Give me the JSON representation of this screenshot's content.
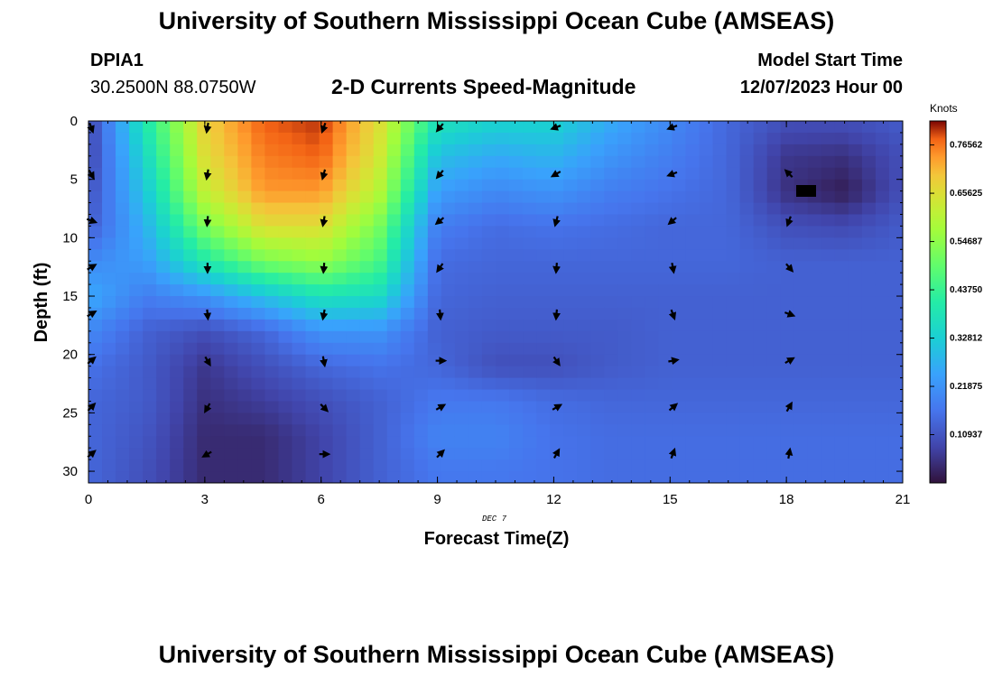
{
  "header": {
    "title": "University of Southern Mississippi Ocean Cube (AMSEAS)",
    "station": "DPIA1",
    "latlon": "30.2500N  88.0750W",
    "chart_title": "2-D Currents Speed-Magnitude",
    "model_start_label": "Model Start Time",
    "model_start_value": "12/07/2023 Hour 00"
  },
  "footer": {
    "title": "University of Southern Mississippi Ocean Cube (AMSEAS)"
  },
  "chart_data": {
    "type": "heatmap",
    "title": "2-D Currents Speed-Magnitude",
    "xlabel": "Forecast Time(Z)",
    "ylabel": "Depth (ft)",
    "date_label": "DEC 7",
    "xlim": [
      0,
      21
    ],
    "ylim": [
      0,
      31
    ],
    "x_ticks": [
      0,
      3,
      6,
      9,
      12,
      15,
      18,
      21
    ],
    "y_ticks": [
      0,
      5,
      10,
      15,
      20,
      25,
      30
    ],
    "colorbar": {
      "label": "Knots",
      "min": 0.0,
      "max": 0.82,
      "ticks": [
        "0.76562",
        "0.65625",
        "0.54687",
        "0.43750",
        "0.32812",
        "0.21875",
        "0.10937"
      ],
      "tick_values": [
        0.76562,
        0.65625,
        0.54687,
        0.4375,
        0.32812,
        0.21875,
        0.10937
      ]
    },
    "speed_grid": {
      "times": [
        0,
        1.5,
        3,
        4.5,
        6,
        7.5,
        9,
        10.5,
        12,
        13.5,
        15,
        16.5,
        18,
        19.5,
        21
      ],
      "depths": [
        0,
        3,
        6,
        9,
        12,
        15,
        18,
        21,
        24,
        27,
        30
      ],
      "values": [
        [
          0.08,
          0.4,
          0.68,
          0.78,
          0.8,
          0.66,
          0.38,
          0.34,
          0.34,
          0.26,
          0.2,
          0.14,
          0.1,
          0.1,
          0.12
        ],
        [
          0.08,
          0.36,
          0.66,
          0.76,
          0.78,
          0.64,
          0.3,
          0.26,
          0.28,
          0.22,
          0.18,
          0.14,
          0.06,
          0.05,
          0.1
        ],
        [
          0.1,
          0.32,
          0.62,
          0.74,
          0.74,
          0.6,
          0.24,
          0.2,
          0.22,
          0.18,
          0.16,
          0.14,
          0.05,
          0.02,
          0.1
        ],
        [
          0.12,
          0.28,
          0.52,
          0.66,
          0.66,
          0.52,
          0.18,
          0.15,
          0.16,
          0.15,
          0.14,
          0.14,
          0.1,
          0.09,
          0.12
        ],
        [
          0.2,
          0.24,
          0.4,
          0.52,
          0.56,
          0.46,
          0.15,
          0.14,
          0.14,
          0.14,
          0.14,
          0.14,
          0.13,
          0.13,
          0.13
        ],
        [
          0.26,
          0.18,
          0.22,
          0.3,
          0.38,
          0.36,
          0.14,
          0.13,
          0.13,
          0.13,
          0.13,
          0.13,
          0.13,
          0.13,
          0.13
        ],
        [
          0.2,
          0.13,
          0.1,
          0.14,
          0.22,
          0.22,
          0.13,
          0.12,
          0.12,
          0.12,
          0.13,
          0.13,
          0.13,
          0.13,
          0.13
        ],
        [
          0.16,
          0.12,
          0.06,
          0.1,
          0.14,
          0.16,
          0.14,
          0.1,
          0.1,
          0.12,
          0.13,
          0.13,
          0.13,
          0.13,
          0.13
        ],
        [
          0.14,
          0.12,
          0.05,
          0.07,
          0.1,
          0.13,
          0.17,
          0.17,
          0.15,
          0.14,
          0.14,
          0.14,
          0.14,
          0.14,
          0.14
        ],
        [
          0.14,
          0.11,
          0.04,
          0.04,
          0.08,
          0.13,
          0.19,
          0.19,
          0.16,
          0.15,
          0.15,
          0.15,
          0.15,
          0.15,
          0.15
        ],
        [
          0.14,
          0.1,
          0.04,
          0.04,
          0.08,
          0.13,
          0.17,
          0.17,
          0.16,
          0.15,
          0.15,
          0.15,
          0.15,
          0.15,
          0.15
        ]
      ]
    },
    "vectors": {
      "times": [
        0,
        3,
        6,
        9,
        12,
        15,
        18
      ],
      "depths": [
        0.3,
        4.3,
        8.3,
        12.3,
        16.3,
        20.3,
        24.3,
        28.3
      ],
      "directions_deg": [
        [
          160,
          190,
          200,
          220,
          250,
          250,
          null
        ],
        [
          150,
          190,
          195,
          220,
          240,
          250,
          315
        ],
        [
          110,
          185,
          190,
          230,
          195,
          230,
          200
        ],
        [
          60,
          180,
          185,
          215,
          185,
          170,
          140
        ],
        [
          60,
          175,
          190,
          175,
          185,
          160,
          110
        ],
        [
          50,
          150,
          170,
          90,
          145,
          80,
          60
        ],
        [
          45,
          210,
          135,
          60,
          60,
          50,
          30
        ],
        [
          50,
          240,
          90,
          45,
          30,
          20,
          10
        ]
      ]
    },
    "grid": false,
    "legend": "right"
  }
}
